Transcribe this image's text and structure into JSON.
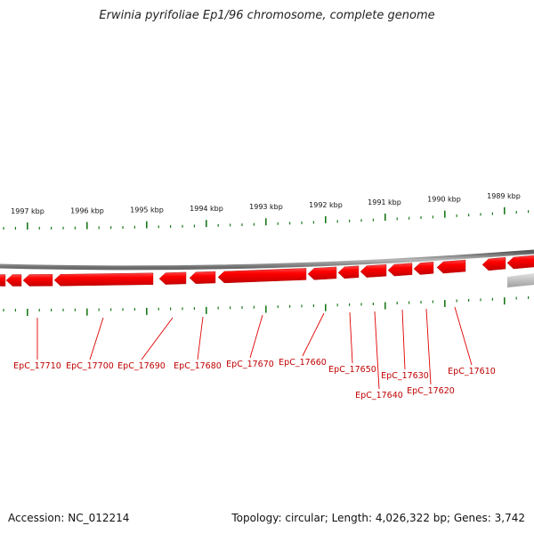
{
  "title": "Erwinia pyrifoliae Ep1/96 chromosome, complete genome",
  "footer": {
    "accession": "Accession: NC_012214",
    "summary": "Topology: circular; Length: 4,026,322 bp; Genes: 3,742"
  },
  "colors": {
    "gene_fill": "#ff0000",
    "gene_dark": "#b00000",
    "gene_label": "#c00000",
    "tick": "#1a7a1a",
    "chromosome": "#808080"
  },
  "ruler": {
    "ticks": [
      {
        "kbp": 1997,
        "label": "1997 kbp"
      },
      {
        "kbp": 1996,
        "label": "1996 kbp"
      },
      {
        "kbp": 1995,
        "label": "1995 kbp"
      },
      {
        "kbp": 1994,
        "label": "1994 kbp"
      },
      {
        "kbp": 1993,
        "label": "1993 kbp"
      },
      {
        "kbp": 1992,
        "label": "1992 kbp"
      },
      {
        "kbp": 1991,
        "label": "1991 kbp"
      },
      {
        "kbp": 1990,
        "label": "1990 kbp"
      },
      {
        "kbp": 1989,
        "label": "1989 kbp"
      }
    ]
  },
  "genes": [
    {
      "label": "EpC_17710"
    },
    {
      "label": "EpC_17700"
    },
    {
      "label": "EpC_17690"
    },
    {
      "label": "EpC_17680"
    },
    {
      "label": "EpC_17670"
    },
    {
      "label": "EpC_17660"
    },
    {
      "label": "EpC_17650"
    },
    {
      "label": "EpC_17640"
    },
    {
      "label": "EpC_17630"
    },
    {
      "label": "EpC_17620"
    },
    {
      "label": "EpC_17610"
    }
  ]
}
